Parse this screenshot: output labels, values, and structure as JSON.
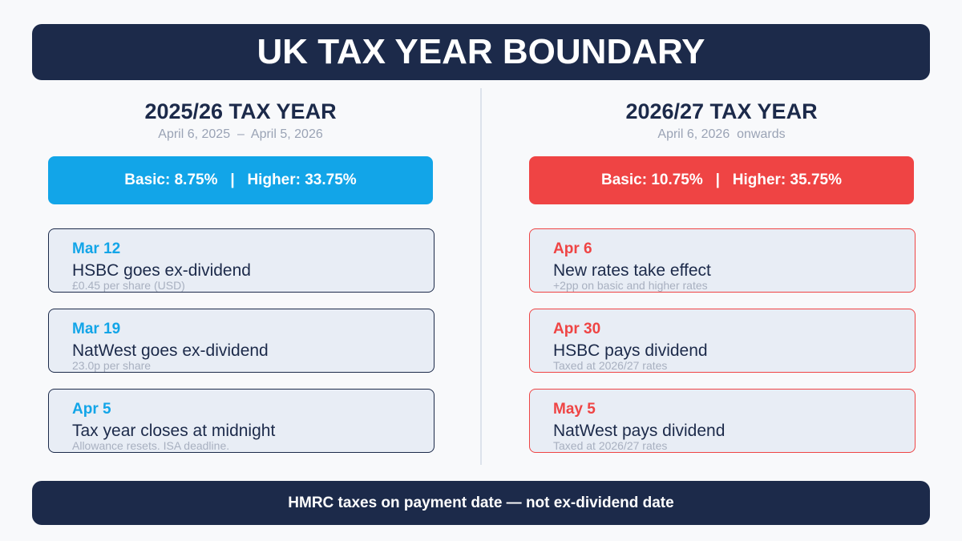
{
  "header": {
    "title": "UK TAX YEAR BOUNDARY"
  },
  "columns": [
    {
      "title": "2025/26 TAX YEAR",
      "dates": "April 6, 2025  –  April 5, 2026",
      "rates": "Basic: 8.75%   |   Higher: 33.75%",
      "events": [
        {
          "date": "Mar 12",
          "title": "HSBC goes ex-dividend",
          "note": "£0.45 per share (USD)"
        },
        {
          "date": "Mar 19",
          "title": "NatWest goes ex-dividend",
          "note": "23.0p per share"
        },
        {
          "date": "Apr 5",
          "title": "Tax year closes at midnight",
          "note": "Allowance resets. ISA deadline."
        }
      ]
    },
    {
      "title": "2026/27 TAX YEAR",
      "dates": "April 6, 2026  onwards",
      "rates": "Basic: 10.75%   |   Higher: 35.75%",
      "events": [
        {
          "date": "Apr 6",
          "title": "New rates take effect",
          "note": "+2pp on basic and higher rates"
        },
        {
          "date": "Apr 30",
          "title": "HSBC pays dividend",
          "note": "Taxed at 2026/27 rates"
        },
        {
          "date": "May 5",
          "title": "NatWest pays dividend",
          "note": "Taxed at 2026/27 rates"
        }
      ]
    }
  ],
  "footer": {
    "text": "HMRC taxes on payment date — not ex-dividend date"
  }
}
